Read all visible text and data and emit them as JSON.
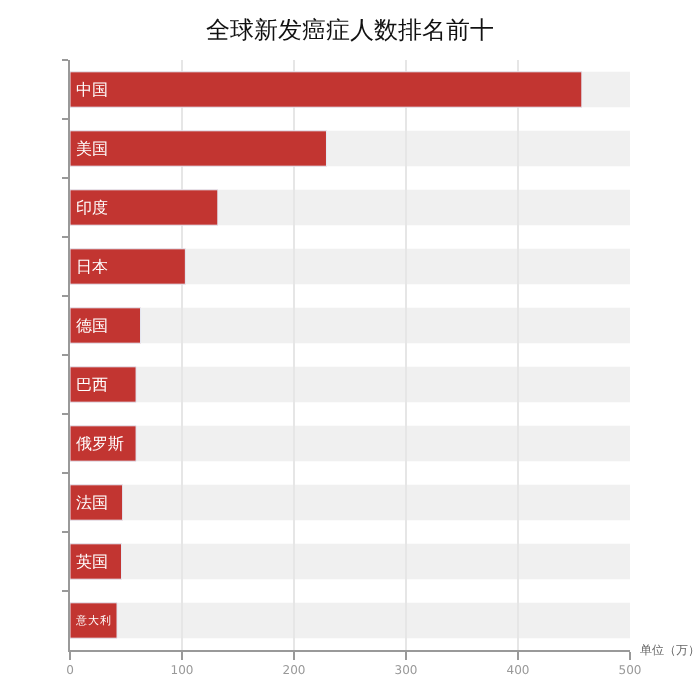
{
  "chart_data": {
    "type": "bar",
    "title": "全球新发癌症人数排名前十",
    "orientation": "horizontal",
    "xlabel": "单位（万）",
    "categories": [
      "中国",
      "美国",
      "印度",
      "日本",
      "德国",
      "巴西",
      "俄罗斯",
      "法国",
      "英国",
      "意大利"
    ],
    "values": [
      457,
      229,
      132,
      103,
      63,
      59,
      59,
      47,
      46,
      42
    ],
    "color": "#c23531",
    "xlim": [
      0,
      500
    ],
    "xticks": [
      0,
      100,
      200,
      300,
      400,
      500
    ],
    "grid": "x",
    "tick_labels": "x"
  }
}
